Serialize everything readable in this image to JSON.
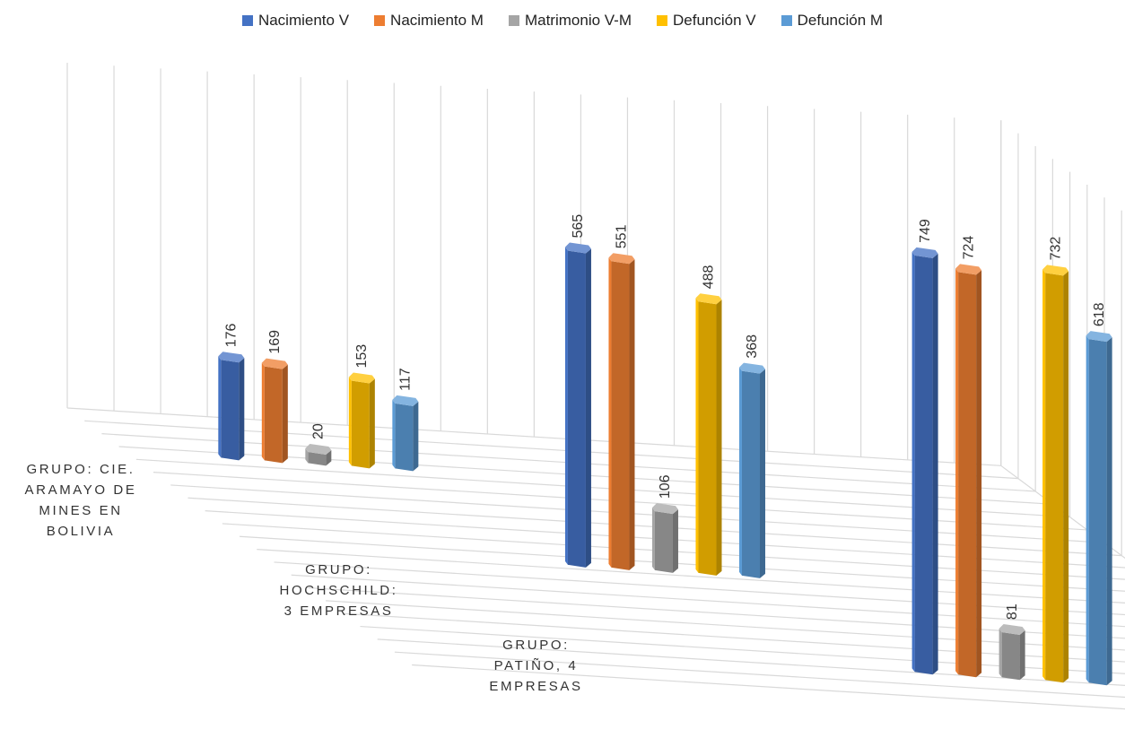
{
  "chart_data": {
    "type": "bar",
    "title": "",
    "xlabel": "",
    "ylabel": "",
    "grid": true,
    "legend_position": "top",
    "categories": [
      [
        "GRUPO: CIE.",
        "ARAMAYO DE",
        "MINES EN",
        "BOLIVIA"
      ],
      [
        "GRUPO:",
        "HOCHSCHILD:",
        "3 EMPRESAS"
      ],
      [
        "GRUPO:",
        "PATIÑO, 4",
        "EMPRESAS"
      ]
    ],
    "series": [
      {
        "name": "Nacimiento V",
        "color": "#4472C4",
        "values": [
          176,
          565,
          749
        ]
      },
      {
        "name": "Nacimiento M",
        "color": "#ED7D31",
        "values": [
          169,
          551,
          724
        ]
      },
      {
        "name": "Matrimonio V-M",
        "color": "#A5A5A5",
        "values": [
          20,
          106,
          81
        ]
      },
      {
        "name": "Defunción V",
        "color": "#FFC000",
        "values": [
          153,
          488,
          732
        ]
      },
      {
        "name": "Defunción M",
        "color": "#5B9BD5",
        "values": [
          117,
          368,
          618
        ]
      }
    ]
  }
}
